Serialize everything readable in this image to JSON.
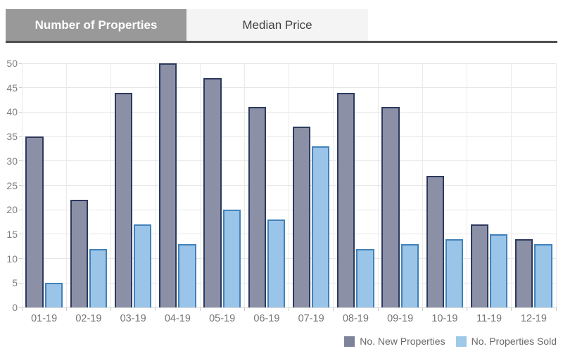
{
  "tabs": [
    {
      "label": "Number of Properties",
      "active": true
    },
    {
      "label": "Median Price",
      "active": false
    }
  ],
  "chart_data": {
    "type": "bar",
    "title": "",
    "xlabel": "",
    "ylabel": "",
    "categories": [
      "01-19",
      "02-19",
      "03-19",
      "04-19",
      "05-19",
      "06-19",
      "07-19",
      "08-19",
      "09-19",
      "10-19",
      "11-19",
      "12-19"
    ],
    "series": [
      {
        "name": "No. New Properties",
        "values": [
          35,
          22,
          44,
          50,
          47,
          41,
          37,
          44,
          41,
          27,
          17,
          14
        ],
        "fill": "#8b90a6",
        "border": "#2d3a5e",
        "legend_swatch": "#7d8399"
      },
      {
        "name": "No. Properties Sold",
        "values": [
          5,
          12,
          17,
          13,
          20,
          18,
          33,
          12,
          13,
          14,
          15,
          13
        ],
        "fill": "#9ac5e8",
        "border": "#4282ba",
        "legend_swatch": "#9ec9e8"
      }
    ],
    "ylim": [
      0,
      50
    ],
    "yticks": [
      0,
      5,
      10,
      15,
      20,
      25,
      30,
      35,
      40,
      45,
      50
    ],
    "grid": true,
    "legend_position": "bottom-right"
  },
  "colors": {
    "active_tab_bg": "#999999",
    "active_tab_text": "#ffffff",
    "inactive_tab_bg": "#f4f4f4",
    "tab_underline": "#4f4f50",
    "gridline": "#e6e6e6",
    "axis_text": "#7d7d7d"
  }
}
